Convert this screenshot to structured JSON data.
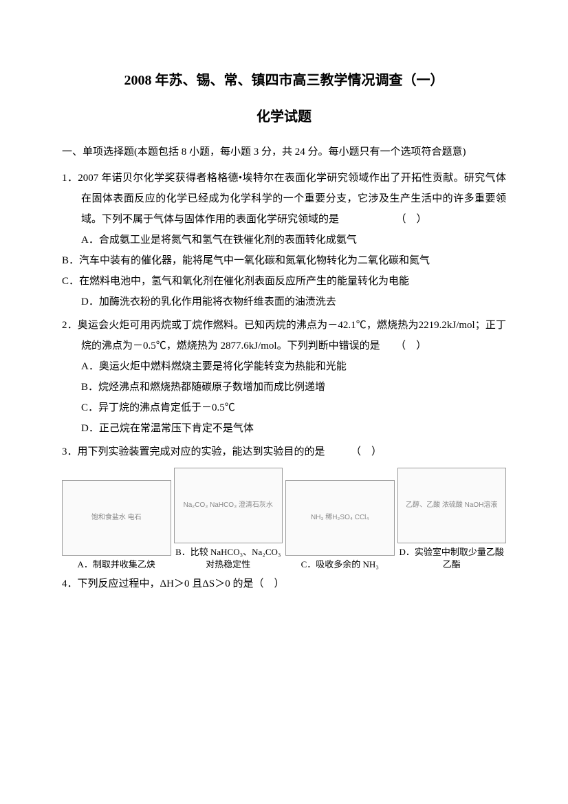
{
  "title": "2008 年苏、锡、常、镇四市高三教学情况调查（一）",
  "subtitle": "化学试题",
  "section_intro": "一、单项选择题(本题包括 8 小题，每小题 3 分，共 24 分。每小题只有一个选项符合题意)",
  "q1": {
    "num": "1．",
    "stem1": "2007 年诺贝尔化学奖获得者格格德•埃特尔在表面化学研究领域作出了开拓性贡献。研究气体在固体表面反应的化学已经成为化学科学的一个重要分支，它涉及生产生活中的许多重要领域。下列不属于气体与固体作用的表面化学研究领域的是　　　　　　（　）",
    "optA": "A．合成氨工业是将氮气和氢气在铁催化剂的表面转化成氨气",
    "optB": "B．汽车中装有的催化器，能将尾气中一氧化碳和氮氧化物转化为二氧化碳和氮气",
    "optC": "C．在燃料电池中，氢气和氧化剂在催化剂表面反应所产生的能量转化为电能",
    "optD": "D．加酶洗衣粉的乳化作用能将衣物纤维表面的油渍洗去"
  },
  "q2": {
    "num": "2．",
    "stem": "奥运会火炬可用丙烷或丁烷作燃料。已知丙烷的沸点为－42.1℃，燃烧热为2219.2kJ/mol；正丁烷的沸点为－0.5℃，燃烧热为 2877.6kJ/mol。下列判断中错误的是　　（　）",
    "optA": "A．奥运火炬中燃料燃烧主要是将化学能转变为热能和光能",
    "optB": "B．烷烃沸点和燃烧热都随碳原子数增加而成比例递增",
    "optC": "C．异丁烷的沸点肯定低于－0.5℃",
    "optD": "D．正己烷在常温常压下肯定不是气体"
  },
  "q3": {
    "num": "3．",
    "stem": "用下列实验装置完成对应的实验，能达到实验目的的是　　　（　）",
    "figA": {
      "label": "A．制取并收集乙炔",
      "diagram": "饱和食盐水 电石"
    },
    "figB": {
      "label": "B．比较 NaHCO₃、Na₂CO₃对热稳定性",
      "diagram": "Na₂CO₃ NaHCO₃ 澄清石灰水"
    },
    "figC": {
      "label": "C．吸收多余的 NH₃",
      "diagram": "NH₃ 稀H₂SO₄ CCl₄"
    },
    "figD": {
      "label": "D．实验室中制取少量乙酸乙酯",
      "diagram": "乙醇、乙酸 浓硫酸 NaOH溶液"
    }
  },
  "q4": {
    "num": "4．",
    "stem": "下列反应过程中，ΔH＞0 且ΔS＞0 的是（　）"
  }
}
